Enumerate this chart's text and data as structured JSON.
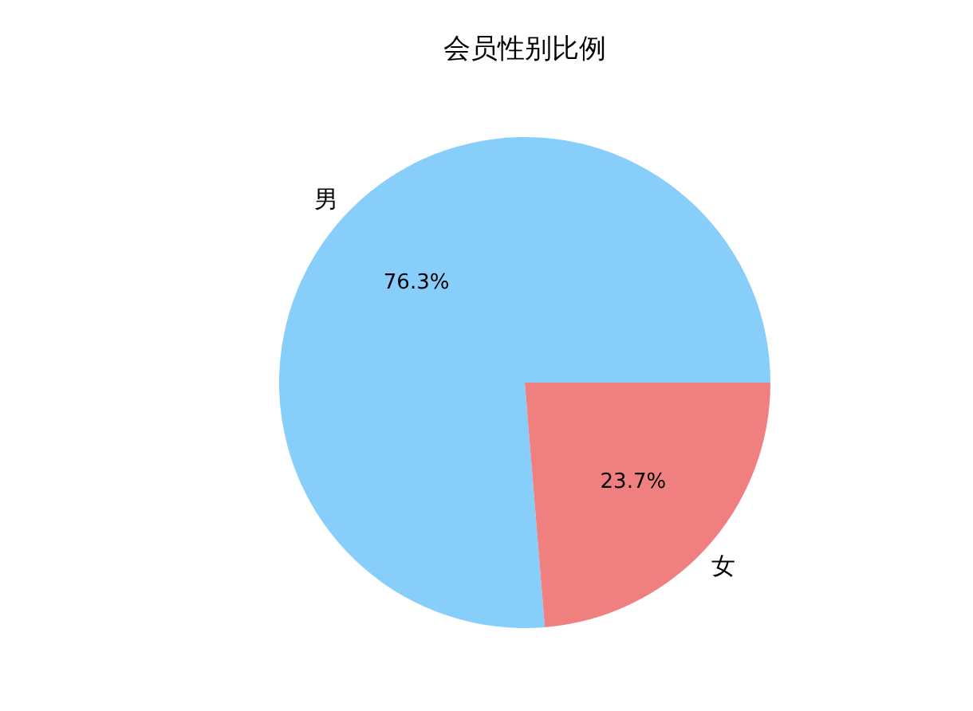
{
  "chart_data": {
    "type": "pie",
    "title": "会员性别比例",
    "categories": [
      "男",
      "女"
    ],
    "values": [
      76.3,
      23.7
    ],
    "colors": [
      "#87cefa",
      "#f08080"
    ],
    "value_labels": [
      "76.3%",
      "23.7%"
    ]
  }
}
